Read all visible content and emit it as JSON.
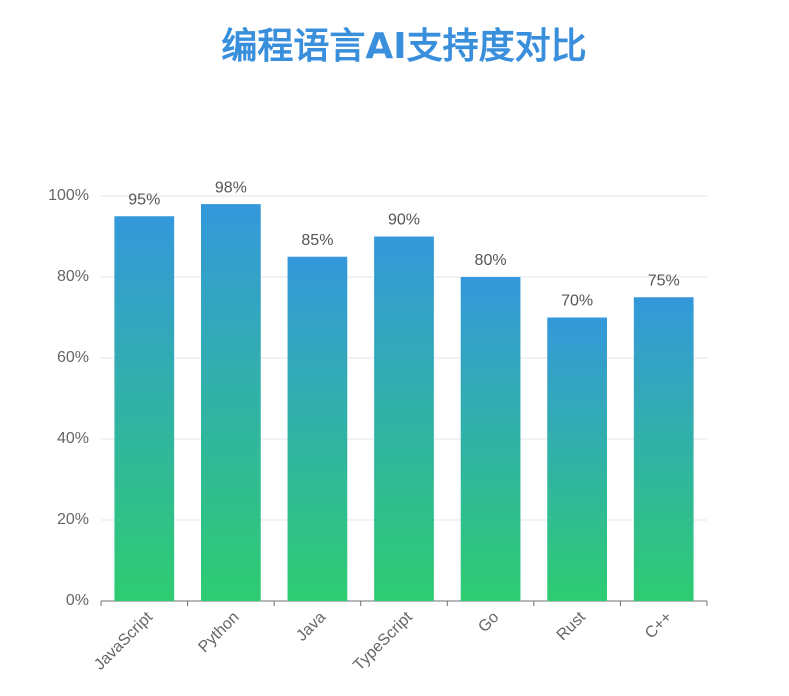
{
  "chart_data": {
    "type": "bar",
    "title": "编程语言AI支持度对比",
    "categories": [
      "JavaScript",
      "Python",
      "Java",
      "TypeScript",
      "Go",
      "Rust",
      "C++"
    ],
    "values": [
      95,
      98,
      85,
      90,
      80,
      70,
      75
    ],
    "value_labels": [
      "95%",
      "98%",
      "85%",
      "90%",
      "80%",
      "70%",
      "75%"
    ],
    "colors": [
      "#3498db",
      "#2ecc71"
    ],
    "ylim": [
      0,
      100
    ],
    "yticks": [
      {
        "value": 0,
        "label": "0%"
      },
      {
        "value": 20,
        "label": "20%"
      },
      {
        "value": 40,
        "label": "40%"
      },
      {
        "value": 60,
        "label": "60%"
      },
      {
        "value": 80,
        "label": "80%"
      },
      {
        "value": 100,
        "label": "100%"
      }
    ],
    "grid": true
  }
}
